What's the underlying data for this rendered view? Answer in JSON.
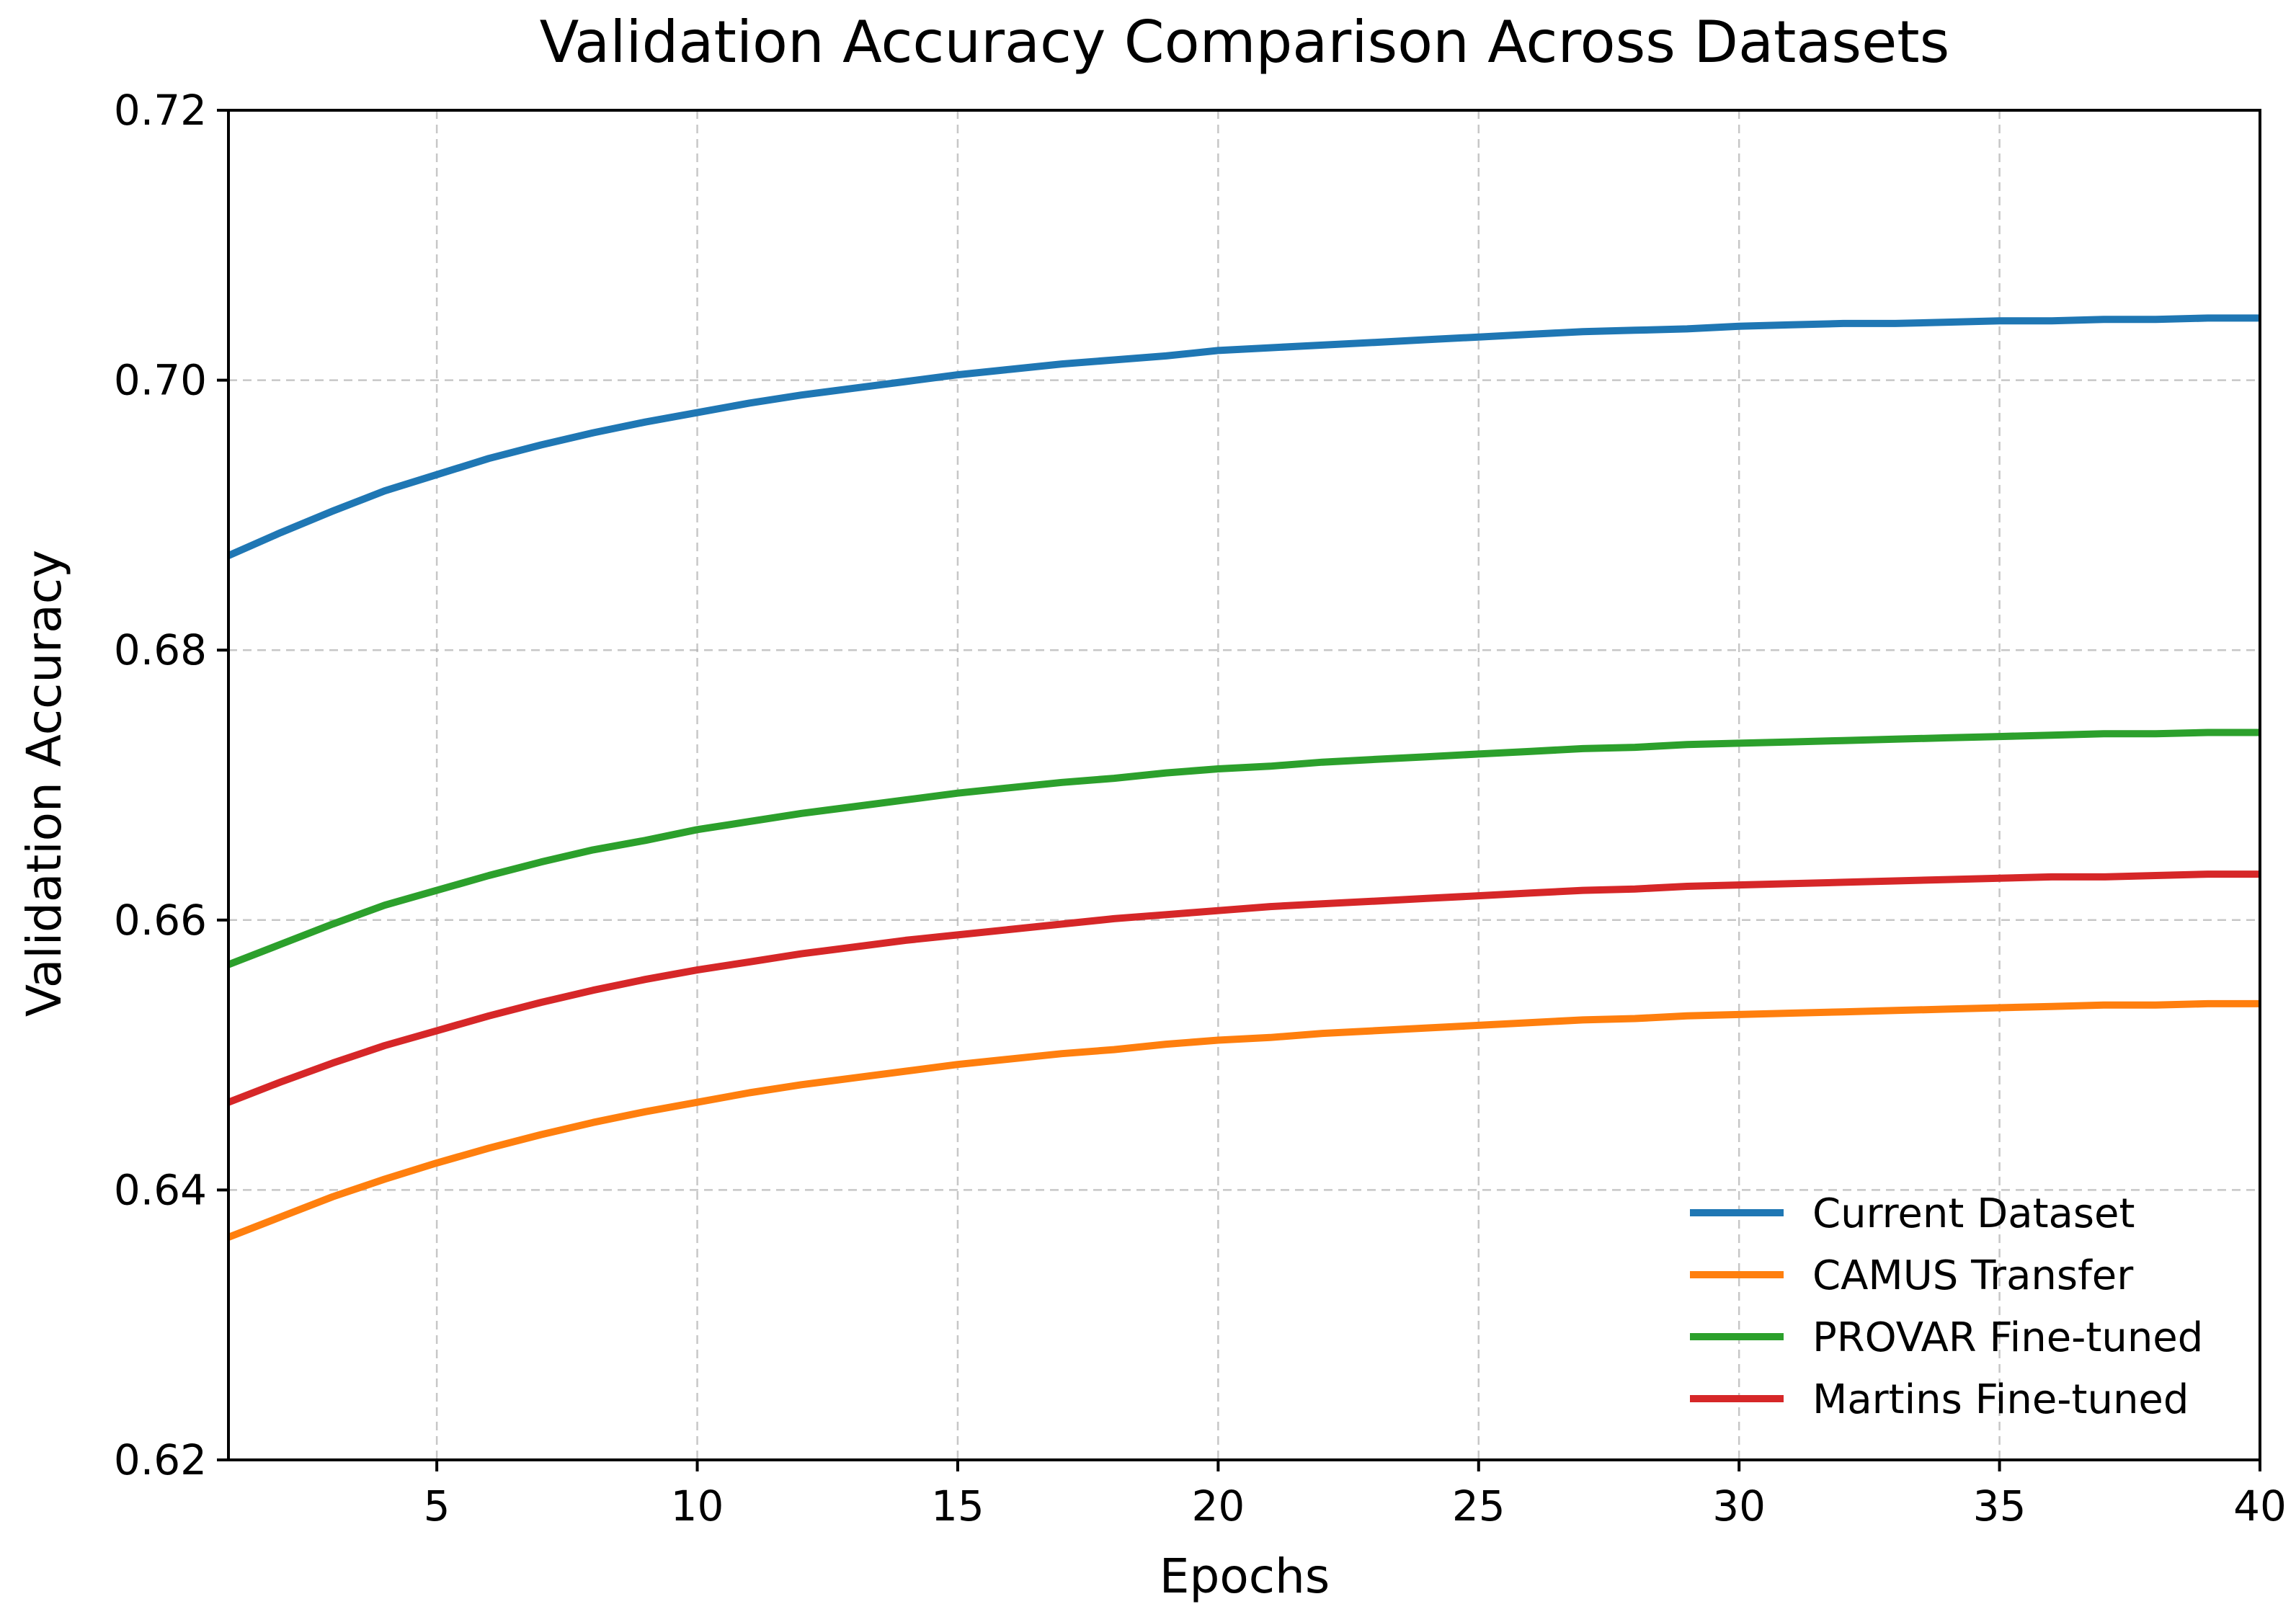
{
  "chart_data": {
    "type": "line",
    "title": "Validation Accuracy Comparison Across Datasets",
    "xlabel": "Epochs",
    "ylabel": "Validation Accuracy",
    "xlim": [
      1,
      40
    ],
    "ylim": [
      0.62,
      0.72
    ],
    "xticks": [
      5,
      10,
      15,
      20,
      25,
      30,
      35,
      40
    ],
    "xtick_labels": [
      "5",
      "10",
      "15",
      "20",
      "25",
      "30",
      "35",
      "40"
    ],
    "yticks": [
      0.62,
      0.64,
      0.66,
      0.68,
      0.7,
      0.72
    ],
    "ytick_labels": [
      "0.62",
      "0.64",
      "0.66",
      "0.68",
      "0.70",
      "0.72"
    ],
    "grid": true,
    "legend_position": "lower-right",
    "x": [
      1,
      2,
      3,
      4,
      5,
      6,
      7,
      8,
      9,
      10,
      11,
      12,
      13,
      14,
      15,
      16,
      17,
      18,
      19,
      20,
      21,
      22,
      23,
      24,
      25,
      26,
      27,
      28,
      29,
      30,
      31,
      32,
      33,
      34,
      35,
      36,
      37,
      38,
      39,
      40
    ],
    "series": [
      {
        "name": "Current Dataset",
        "color": "#1f77b4",
        "values": [
          0.687,
          0.6887,
          0.6903,
          0.6918,
          0.693,
          0.6942,
          0.6952,
          0.6961,
          0.6969,
          0.6976,
          0.6983,
          0.6989,
          0.6994,
          0.6999,
          0.7004,
          0.7008,
          0.7012,
          0.7015,
          0.7018,
          0.7022,
          0.7024,
          0.7026,
          0.7028,
          0.703,
          0.7032,
          0.7034,
          0.7036,
          0.7037,
          0.7038,
          0.704,
          0.7041,
          0.7042,
          0.7042,
          0.7043,
          0.7044,
          0.7044,
          0.7045,
          0.7045,
          0.7046,
          0.7046
        ]
      },
      {
        "name": "CAMUS Transfer",
        "color": "#ff7f0e",
        "values": [
          0.6365,
          0.638,
          0.6395,
          0.6408,
          0.642,
          0.6431,
          0.6441,
          0.645,
          0.6458,
          0.6465,
          0.6472,
          0.6478,
          0.6483,
          0.6488,
          0.6493,
          0.6497,
          0.6501,
          0.6504,
          0.6508,
          0.6511,
          0.6513,
          0.6516,
          0.6518,
          0.652,
          0.6522,
          0.6524,
          0.6526,
          0.6527,
          0.6529,
          0.653,
          0.6531,
          0.6532,
          0.6533,
          0.6534,
          0.6535,
          0.6536,
          0.6537,
          0.6537,
          0.6538,
          0.6538
        ]
      },
      {
        "name": "PROVAR Fine-tuned",
        "color": "#2ca02c",
        "values": [
          0.6567,
          0.6582,
          0.6597,
          0.6611,
          0.6622,
          0.6633,
          0.6643,
          0.6652,
          0.6659,
          0.6667,
          0.6673,
          0.6679,
          0.6684,
          0.6689,
          0.6694,
          0.6698,
          0.6702,
          0.6705,
          0.6709,
          0.6712,
          0.6714,
          0.6717,
          0.6719,
          0.6721,
          0.6723,
          0.6725,
          0.6727,
          0.6728,
          0.673,
          0.6731,
          0.6732,
          0.6733,
          0.6734,
          0.6735,
          0.6736,
          0.6737,
          0.6738,
          0.6738,
          0.6739,
          0.6739
        ]
      },
      {
        "name": "Martins Fine-tuned",
        "color": "#d62728",
        "values": [
          0.6465,
          0.648,
          0.6494,
          0.6507,
          0.6518,
          0.6529,
          0.6539,
          0.6548,
          0.6556,
          0.6563,
          0.6569,
          0.6575,
          0.658,
          0.6585,
          0.6589,
          0.6593,
          0.6597,
          0.6601,
          0.6604,
          0.6607,
          0.661,
          0.6612,
          0.6614,
          0.6616,
          0.6618,
          0.662,
          0.6622,
          0.6623,
          0.6625,
          0.6626,
          0.6627,
          0.6628,
          0.6629,
          0.663,
          0.6631,
          0.6632,
          0.6632,
          0.6633,
          0.6634,
          0.6634
        ]
      }
    ]
  }
}
